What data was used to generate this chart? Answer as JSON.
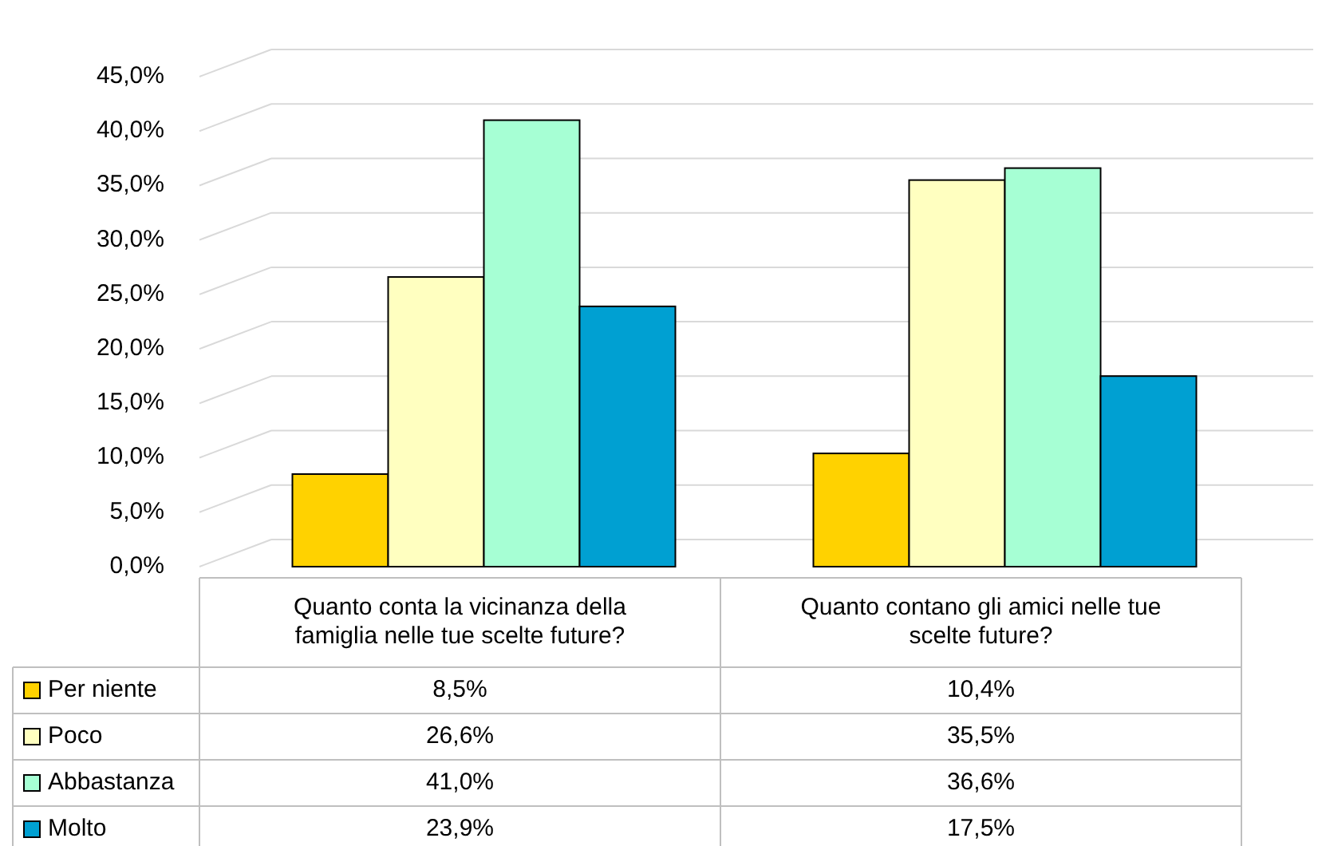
{
  "chart_data": {
    "type": "bar",
    "categories": [
      "Quanto conta la vicinanza della famiglia nelle tue scelte future?",
      "Quanto contano gli amici nelle tue scelte future?"
    ],
    "series": [
      {
        "name": "Per niente",
        "color": "#ffd200",
        "values": [
          8.5,
          10.4
        ],
        "value_labels": [
          "8,5%",
          "10,4%"
        ]
      },
      {
        "name": "Poco",
        "color": "#ffffc0",
        "values": [
          26.6,
          35.5
        ],
        "value_labels": [
          "26,6%",
          "35,5%"
        ]
      },
      {
        "name": "Abbastanza",
        "color": "#a6ffd4",
        "values": [
          41.0,
          36.6
        ],
        "value_labels": [
          "41,0%",
          "36,6%"
        ]
      },
      {
        "name": "Molto",
        "color": "#00a0d2",
        "values": [
          23.9,
          17.5
        ],
        "value_labels": [
          "23,9%",
          "17,5%"
        ]
      }
    ],
    "ylim": [
      0,
      45
    ],
    "yticks": [
      {
        "value": 0,
        "label": "0,0%"
      },
      {
        "value": 5,
        "label": "5,0%"
      },
      {
        "value": 10,
        "label": "10,0%"
      },
      {
        "value": 15,
        "label": "15,0%"
      },
      {
        "value": 20,
        "label": "20,0%"
      },
      {
        "value": 25,
        "label": "25,0%"
      },
      {
        "value": 30,
        "label": "30,0%"
      },
      {
        "value": 35,
        "label": "35,0%"
      },
      {
        "value": 40,
        "label": "40,0%"
      },
      {
        "value": 45,
        "label": "45,0%"
      }
    ],
    "grid": "y",
    "legend": "bottom left"
  }
}
